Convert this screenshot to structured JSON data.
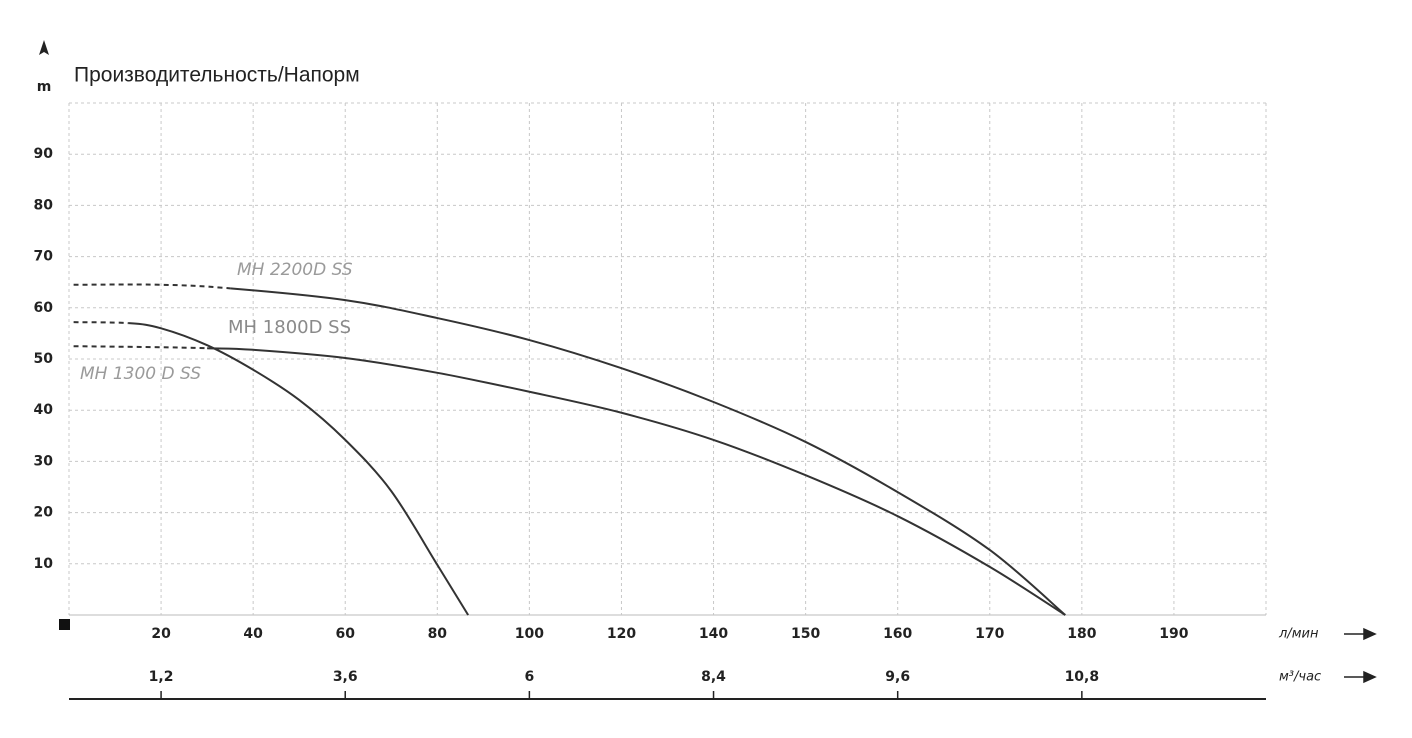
{
  "chart_data": {
    "type": "line",
    "title": "Производительность/Напорм",
    "y_label": "m",
    "x_label": "л/мин",
    "x2_label": "м³/час",
    "xlim": [
      0,
      200
    ],
    "xticks": [
      20,
      40,
      60,
      80,
      100,
      120,
      140,
      150,
      160,
      170,
      180,
      190
    ],
    "x2lim": [
      0,
      12
    ],
    "x2ticks": [
      {
        "value": 1.2,
        "label": "1,2"
      },
      {
        "value": 3.6,
        "label": "3,6"
      },
      6,
      {
        "value": 8.4,
        "label": "8,4"
      },
      {
        "value": 9.6,
        "label": "9,6"
      },
      {
        "value": 10.8,
        "label": "10,8"
      }
    ],
    "ylim": [
      0,
      100
    ],
    "yticks": [
      10,
      20,
      30,
      40,
      50,
      60,
      70,
      80,
      90
    ],
    "grid": true,
    "series": [
      {
        "name": "MH 2200D SS",
        "color": "#333333",
        "dashed_segments": 2,
        "x": [
          1,
          20,
          35,
          60,
          80,
          100,
          120,
          140,
          150,
          160,
          170,
          178.2
        ],
        "values": [
          64.5,
          64.5,
          63.8,
          61.5,
          58,
          53.7,
          48.2,
          41.6,
          33.8,
          24,
          12.7,
          0
        ]
      },
      {
        "name": "MH 1800D SS",
        "color": "#333333",
        "dashed_segments": 2,
        "x": [
          1,
          20,
          30,
          40,
          60,
          80,
          100,
          120,
          140,
          150,
          160,
          170,
          178.2
        ],
        "values": [
          52.5,
          52.3,
          52.1,
          51.8,
          50.2,
          47.3,
          43.6,
          39.5,
          34.2,
          27.3,
          19.3,
          9.4,
          0
        ]
      },
      {
        "name": "MH 1300 D SS",
        "color": "#333333",
        "dashed_segments": 1,
        "x": [
          1,
          13,
          20,
          30,
          40,
          50,
          60,
          70,
          80,
          86.7
        ],
        "values": [
          57.2,
          57,
          56,
          52.7,
          47.9,
          42,
          34.2,
          24.2,
          9.8,
          0
        ]
      }
    ]
  }
}
